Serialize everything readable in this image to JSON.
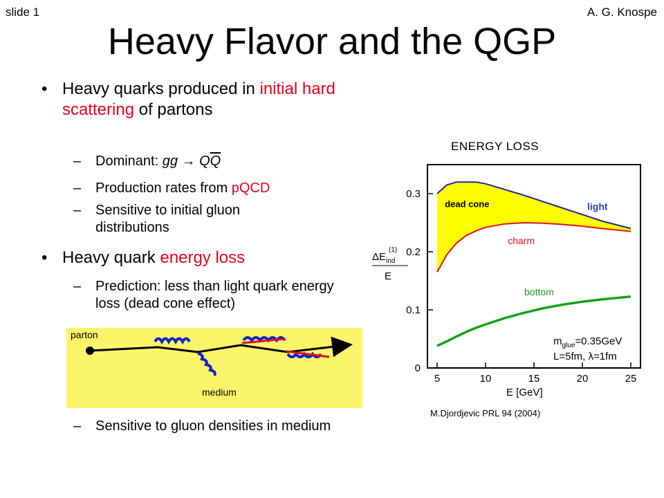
{
  "slide_number": "slide 1",
  "author": "A. G. Knospe",
  "title": "Heavy Flavor and the QGP",
  "bullet_glyph": "•",
  "dash_glyph": "–",
  "bullets": [
    {
      "text_before": "Heavy quarks produced in ",
      "highlight": "initial hard scattering",
      "text_after": " of partons",
      "subs": [
        {
          "text_before": "Dominant: ",
          "gg": "gg",
          "arrow": " → ",
          "Q": "Q",
          "Qbar": "Q"
        },
        {
          "text_before": "Production rates from ",
          "highlight": "pQCD"
        },
        {
          "text": "Sensitive to initial gluon distributions"
        }
      ]
    },
    {
      "text_before": "Heavy quark ",
      "highlight": "energy loss",
      "subs": [
        {
          "text": "Prediction: less than light quark energy loss (dead cone effect)"
        },
        {
          "text": "Sensitive to gluon densities in medium"
        }
      ]
    }
  ],
  "medium_diagram": {
    "parton_label": "parton",
    "medium_label": "medium"
  },
  "colors": {
    "highlight": "#e8001c",
    "medium_fill": "#fbf56a",
    "light_curve": "#2222a0",
    "charm_curve": "#e01020",
    "bottom_curve": "#18a018",
    "dead_cone_fill": "#ffff00",
    "gluon_blue": "#1020d0",
    "gluon_red": "#e01020"
  },
  "energy_loss_heading": "ENERGY LOSS",
  "citation": "M.Djordjevic PRL 94 (2004)",
  "chart_data": {
    "type": "line",
    "title": "",
    "xlabel": "E [GeV]",
    "ylabel": "ΔE_ind^(1) / E",
    "ylabel_parts": {
      "num": "ΔE",
      "sub": "ind",
      "sup": "(1)",
      "den": "E"
    },
    "xlim": [
      4,
      26
    ],
    "ylim": [
      0,
      0.35
    ],
    "x_ticks": [
      5,
      10,
      15,
      20,
      25
    ],
    "y_ticks": [
      0,
      0.1,
      0.2,
      0.3
    ],
    "y_tick_labels": [
      "0",
      "0.1",
      "0.2",
      "0.3"
    ],
    "grid": false,
    "legend": "inline labels",
    "series": [
      {
        "name": "light",
        "color": "#2222a0",
        "x": [
          5,
          6,
          7,
          8,
          9,
          10,
          12,
          14,
          16,
          18,
          20,
          22,
          25
        ],
        "y": [
          0.3,
          0.315,
          0.32,
          0.32,
          0.32,
          0.317,
          0.307,
          0.297,
          0.286,
          0.275,
          0.264,
          0.253,
          0.24
        ]
      },
      {
        "name": "charm",
        "color": "#e01020",
        "x": [
          5,
          6,
          7,
          8,
          9,
          10,
          12,
          14,
          16,
          18,
          20,
          22,
          25
        ],
        "y": [
          0.165,
          0.195,
          0.215,
          0.228,
          0.236,
          0.242,
          0.248,
          0.25,
          0.249,
          0.247,
          0.244,
          0.24,
          0.235
        ]
      },
      {
        "name": "bottom",
        "color": "#18a018",
        "x": [
          5,
          6,
          7,
          8,
          9,
          10,
          12,
          14,
          16,
          18,
          20,
          22,
          25
        ],
        "y": [
          0.038,
          0.046,
          0.054,
          0.062,
          0.069,
          0.075,
          0.086,
          0.095,
          0.103,
          0.109,
          0.114,
          0.118,
          0.123
        ]
      }
    ],
    "annotations": {
      "dead_cone": "dead cone",
      "params_line1_prefix": "m",
      "params_line1_sub": "glue",
      "params_line1_suffix": "=0.35GeV",
      "params_line2": "L=5fm, λ=1fm"
    }
  }
}
